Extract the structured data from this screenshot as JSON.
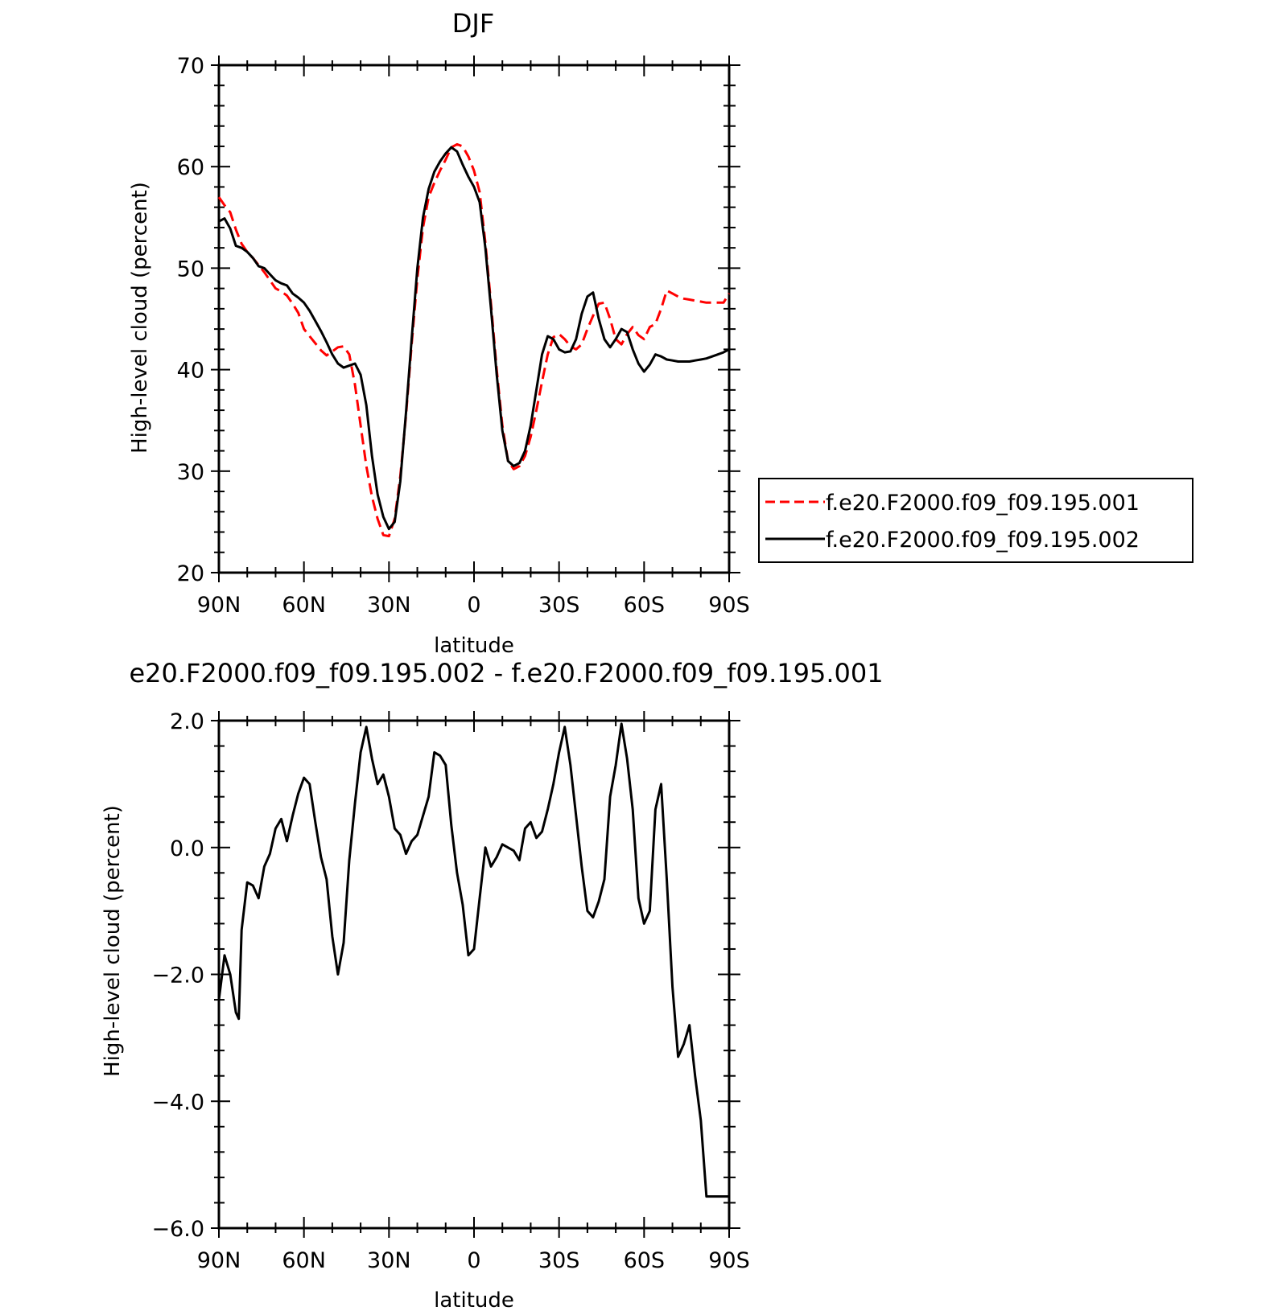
{
  "chart_data": [
    {
      "type": "line",
      "title": "DJF",
      "xlabel": "latitude",
      "ylabel": "High-level cloud (percent)",
      "xlim": [
        90,
        -90
      ],
      "ylim": [
        20,
        70
      ],
      "x_ticks": [
        90,
        60,
        30,
        0,
        -30,
        -60,
        -90
      ],
      "x_tick_labels": [
        "90N",
        "60N",
        "30N",
        "0",
        "30S",
        "60S",
        "90S"
      ],
      "y_ticks": [
        20,
        30,
        40,
        50,
        60,
        70
      ],
      "y_tick_labels": [
        "20",
        "30",
        "40",
        "50",
        "60",
        "70"
      ],
      "legend_position": "right",
      "series": [
        {
          "name": "f.e20.F2000.f09_f09.195.001",
          "color": "#ff0000",
          "dash": "dashed",
          "x": [
            90,
            88,
            86,
            84,
            82,
            80,
            78,
            76,
            74,
            72,
            70,
            68,
            66,
            64,
            62,
            60,
            58,
            56,
            54,
            52,
            50,
            48,
            46,
            44,
            42,
            40,
            38,
            36,
            34,
            32,
            30,
            28,
            26,
            24,
            22,
            20,
            18,
            16,
            14,
            12,
            10,
            8,
            6,
            4,
            2,
            0,
            -2,
            -4,
            -6,
            -8,
            -10,
            -12,
            -14,
            -16,
            -18,
            -20,
            -22,
            -24,
            -26,
            -28,
            -30,
            -32,
            -34,
            -36,
            -38,
            -40,
            -42,
            -44,
            -46,
            -48,
            -50,
            -52,
            -54,
            -56,
            -58,
            -60,
            -62,
            -64,
            -66,
            -68,
            -70,
            -72,
            -74,
            -76,
            -78,
            -80,
            -82,
            -84,
            -86,
            -88,
            -90
          ],
          "values": [
            57.0,
            56.2,
            55.5,
            53.8,
            52.4,
            51.6,
            51.0,
            50.3,
            49.6,
            48.8,
            48.0,
            47.7,
            47.3,
            46.5,
            45.6,
            44.0,
            43.3,
            42.6,
            41.9,
            41.4,
            41.8,
            42.2,
            42.3,
            41.5,
            38.5,
            34.5,
            30.5,
            27.5,
            25.3,
            23.7,
            23.6,
            25.3,
            29.5,
            35.5,
            42.5,
            49.0,
            54.0,
            57.0,
            58.4,
            59.6,
            60.7,
            61.9,
            62.2,
            62.0,
            61.0,
            59.6,
            57.5,
            52.5,
            46.5,
            40.0,
            34.5,
            31.0,
            30.2,
            30.5,
            31.5,
            33.4,
            36.0,
            38.8,
            41.5,
            43.2,
            43.5,
            43.0,
            42.3,
            42.0,
            42.5,
            44.0,
            45.3,
            46.5,
            46.6,
            45.0,
            43.0,
            42.5,
            43.5,
            44.2,
            43.4,
            43.0,
            44.2,
            44.5,
            46.0,
            47.8,
            47.5,
            47.2,
            47.0,
            46.9,
            46.8,
            46.7,
            46.6,
            46.6,
            46.6,
            46.6,
            47.5
          ]
        },
        {
          "name": "f.e20.F2000.f09_f09.195.002",
          "color": "#000000",
          "dash": "solid",
          "x": [
            90,
            88,
            86,
            84,
            82,
            80,
            78,
            76,
            74,
            72,
            70,
            68,
            66,
            64,
            62,
            60,
            58,
            56,
            54,
            52,
            50,
            48,
            46,
            44,
            42,
            40,
            38,
            36,
            34,
            32,
            30,
            28,
            26,
            24,
            22,
            20,
            18,
            16,
            14,
            12,
            10,
            8,
            6,
            4,
            2,
            0,
            -2,
            -4,
            -6,
            -8,
            -10,
            -12,
            -14,
            -16,
            -18,
            -20,
            -22,
            -24,
            -26,
            -28,
            -30,
            -32,
            -34,
            -36,
            -38,
            -40,
            -42,
            -44,
            -46,
            -48,
            -50,
            -52,
            -54,
            -56,
            -58,
            -60,
            -62,
            -64,
            -66,
            -68,
            -70,
            -72,
            -74,
            -76,
            -78,
            -80,
            -82,
            -84,
            -86,
            -88,
            -90
          ],
          "values": [
            54.6,
            54.9,
            53.9,
            52.2,
            52.0,
            51.6,
            51.0,
            50.2,
            50.0,
            49.4,
            48.8,
            48.5,
            48.3,
            47.5,
            47.1,
            46.6,
            45.8,
            44.8,
            43.8,
            42.7,
            41.5,
            40.6,
            40.2,
            40.4,
            40.6,
            39.5,
            36.5,
            31.5,
            27.7,
            25.5,
            24.3,
            25.0,
            29.0,
            35.8,
            43.0,
            50.0,
            55.0,
            57.8,
            59.5,
            60.5,
            61.3,
            61.9,
            61.5,
            60.2,
            59.0,
            58.0,
            56.5,
            52.0,
            46.0,
            39.5,
            34.0,
            31.0,
            30.5,
            30.8,
            32.0,
            34.5,
            38.0,
            41.5,
            43.3,
            43.0,
            42.0,
            41.7,
            41.8,
            43.0,
            45.5,
            47.2,
            47.6,
            45.0,
            43.0,
            42.2,
            43.0,
            44.0,
            43.7,
            42.0,
            40.6,
            39.8,
            40.5,
            41.5,
            41.3,
            41.0,
            40.9,
            40.8,
            40.8,
            40.8,
            40.9,
            41.0,
            41.1,
            41.3,
            41.5,
            41.7,
            42.0
          ]
        }
      ]
    },
    {
      "type": "line",
      "title": "e20.F2000.f09_f09.195.002 - f.e20.F2000.f09_f09.195.001",
      "xlabel": "latitude",
      "ylabel": "High-level cloud (percent)",
      "xlim": [
        90,
        -90
      ],
      "ylim": [
        -6.0,
        2.0
      ],
      "x_ticks": [
        90,
        60,
        30,
        0,
        -30,
        -60,
        -90
      ],
      "x_tick_labels": [
        "90N",
        "60N",
        "30N",
        "0",
        "30S",
        "60S",
        "90S"
      ],
      "y_ticks": [
        -6.0,
        -4.0,
        -2.0,
        0.0,
        2.0
      ],
      "y_tick_labels": [
        "−6.0",
        "−4.0",
        "−2.0",
        "0.0",
        "2.0"
      ],
      "series": [
        {
          "color": "#000000",
          "dash": "solid",
          "x": [
            90,
            88,
            86,
            84,
            83,
            82,
            80,
            78,
            76,
            74,
            72,
            70,
            68,
            66,
            64,
            62,
            60,
            58,
            56,
            54,
            52,
            50,
            48,
            46,
            44,
            42,
            40,
            38,
            36,
            34,
            32,
            30,
            28,
            26,
            24,
            22,
            20,
            18,
            16,
            14,
            12,
            10,
            8,
            6,
            4,
            2,
            0,
            -2,
            -4,
            -6,
            -8,
            -10,
            -12,
            -14,
            -16,
            -18,
            -20,
            -22,
            -24,
            -26,
            -28,
            -30,
            -32,
            -34,
            -36,
            -38,
            -40,
            -42,
            -44,
            -46,
            -48,
            -50,
            -52,
            -54,
            -56,
            -58,
            -60,
            -62,
            -64,
            -66,
            -68,
            -70,
            -72,
            -74,
            -76,
            -78,
            -80,
            -82,
            -84,
            -86,
            -88,
            -90
          ],
          "values": [
            -2.4,
            -1.7,
            -2.0,
            -2.6,
            -2.7,
            -1.3,
            -0.55,
            -0.6,
            -0.8,
            -0.3,
            -0.1,
            0.3,
            0.45,
            0.1,
            0.5,
            0.85,
            1.1,
            1.0,
            0.4,
            -0.15,
            -0.5,
            -1.4,
            -2.0,
            -1.5,
            -0.2,
            0.7,
            1.5,
            1.9,
            1.4,
            1.0,
            1.15,
            0.8,
            0.3,
            0.2,
            -0.1,
            0.1,
            0.2,
            0.5,
            0.8,
            1.5,
            1.45,
            1.3,
            0.35,
            -0.4,
            -0.9,
            -1.7,
            -1.6,
            -0.8,
            0.0,
            -0.3,
            -0.15,
            0.05,
            0.0,
            -0.05,
            -0.2,
            0.3,
            0.4,
            0.15,
            0.25,
            0.6,
            1.0,
            1.5,
            1.9,
            1.3,
            0.5,
            -0.3,
            -1.0,
            -1.1,
            -0.85,
            -0.5,
            0.8,
            1.3,
            1.95,
            1.4,
            0.6,
            -0.8,
            -1.2,
            -1.0,
            0.6,
            1.0,
            -0.5,
            -2.2,
            -3.3,
            -3.1,
            -2.8,
            -3.6,
            -4.3,
            -5.5,
            -5.5,
            -5.5,
            -5.5,
            -5.5
          ]
        }
      ]
    }
  ],
  "legend": {
    "items": [
      "f.e20.F2000.f09_f09.195.001",
      "f.e20.F2000.f09_f09.195.002"
    ]
  }
}
